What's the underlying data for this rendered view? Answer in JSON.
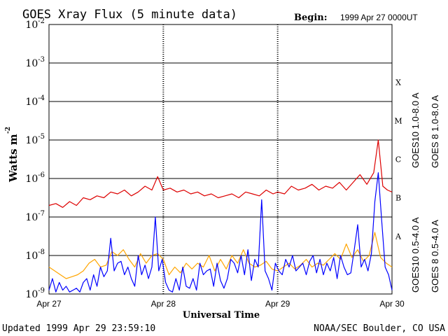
{
  "header": {
    "title": "GOES Xray Flux (5 minute data)",
    "begin_label": "Begin:",
    "begin_value": "1999 Apr 27 0000UT"
  },
  "footer": {
    "updated": "Updated 1999 Apr 29 23:59:10",
    "credit": "NOAA/SEC Boulder, CO USA"
  },
  "chart_data": {
    "type": "line",
    "title": "GOES Xray Flux (5 minute data)",
    "xlabel": "Universal Time",
    "ylabel": "Watts m-2",
    "ylabel_base": "Watts m",
    "ylabel_exp": "-2",
    "y_scale": "log",
    "xlim": [
      0,
      3
    ],
    "ylim": [
      1e-09,
      0.01
    ],
    "grid": true,
    "x_ticks": [
      {
        "x": 0,
        "label": "Apr 27"
      },
      {
        "x": 1,
        "label": "Apr 28"
      },
      {
        "x": 2,
        "label": "Apr 29"
      },
      {
        "x": 3,
        "label": "Apr 30"
      }
    ],
    "y_ticks": [
      {
        "exp": -2,
        "base": "10",
        "sup": "-2"
      },
      {
        "exp": -3,
        "base": "10",
        "sup": "-3"
      },
      {
        "exp": -4,
        "base": "10",
        "sup": "-4"
      },
      {
        "exp": -5,
        "base": "10",
        "sup": "-5"
      },
      {
        "exp": -6,
        "base": "10",
        "sup": "-6"
      },
      {
        "exp": -7,
        "base": "10",
        "sup": "-7"
      },
      {
        "exp": -8,
        "base": "10",
        "sup": "-8"
      },
      {
        "exp": -9,
        "base": "10",
        "sup": "-9"
      }
    ],
    "flare_classes": [
      {
        "label": "X",
        "at": -3.5
      },
      {
        "label": "M",
        "at": -4.5
      },
      {
        "label": "C",
        "at": -5.5
      },
      {
        "label": "B",
        "at": -6.5
      },
      {
        "label": "A",
        "at": -7.5
      }
    ],
    "legend": [
      {
        "label": "GOES10 1.0-8.0 A",
        "color": "#7a12a6"
      },
      {
        "label": "GOES 8 1.0-8.0 A",
        "color": "#dd0000"
      },
      {
        "label": "GOES10 0.5-4.0 A",
        "color": "#ffa500"
      },
      {
        "label": "GOES 8 0.5-4.0 A",
        "color": "#0000ff"
      }
    ],
    "series": [
      {
        "name": "GOES 8 1.0-8.0 A",
        "color": "#dd0000",
        "x": [
          0,
          0.06,
          0.12,
          0.18,
          0.24,
          0.3,
          0.36,
          0.42,
          0.48,
          0.54,
          0.6,
          0.66,
          0.72,
          0.78,
          0.84,
          0.9,
          0.95,
          1.0,
          1.06,
          1.12,
          1.18,
          1.24,
          1.3,
          1.36,
          1.42,
          1.48,
          1.54,
          1.6,
          1.66,
          1.72,
          1.78,
          1.84,
          1.9,
          1.96,
          2.0,
          2.06,
          2.12,
          2.18,
          2.24,
          2.3,
          2.36,
          2.42,
          2.48,
          2.54,
          2.6,
          2.66,
          2.72,
          2.78,
          2.84,
          2.88,
          2.92,
          2.96,
          3.0
        ],
        "y": [
          -6.7,
          -6.65,
          -6.75,
          -6.6,
          -6.7,
          -6.5,
          -6.55,
          -6.45,
          -6.5,
          -6.35,
          -6.4,
          -6.3,
          -6.45,
          -6.35,
          -6.2,
          -6.3,
          -5.95,
          -6.3,
          -6.25,
          -6.35,
          -6.3,
          -6.4,
          -6.35,
          -6.45,
          -6.4,
          -6.5,
          -6.45,
          -6.4,
          -6.5,
          -6.35,
          -6.4,
          -6.45,
          -6.3,
          -6.4,
          -6.35,
          -6.4,
          -6.2,
          -6.3,
          -6.25,
          -6.15,
          -6.3,
          -6.2,
          -6.25,
          -6.1,
          -6.3,
          -6.1,
          -5.9,
          -6.15,
          -5.85,
          -5.0,
          -6.2,
          -6.3,
          -6.35
        ]
      },
      {
        "name": "GOES10 0.5-4.0 A",
        "color": "#ffa500",
        "x": [
          0,
          0.05,
          0.1,
          0.15,
          0.2,
          0.25,
          0.3,
          0.35,
          0.4,
          0.45,
          0.5,
          0.55,
          0.6,
          0.65,
          0.7,
          0.75,
          0.8,
          0.85,
          0.9,
          0.95,
          1.0,
          1.05,
          1.1,
          1.15,
          1.2,
          1.25,
          1.3,
          1.35,
          1.4,
          1.45,
          1.5,
          1.55,
          1.6,
          1.65,
          1.7,
          1.75,
          1.8,
          1.85,
          1.9,
          1.95,
          2.0,
          2.05,
          2.1,
          2.15,
          2.2,
          2.25,
          2.3,
          2.35,
          2.4,
          2.45,
          2.5,
          2.55,
          2.6,
          2.65,
          2.7,
          2.75,
          2.8,
          2.85,
          2.9,
          2.95,
          3.0
        ],
        "y": [
          -8.3,
          -8.4,
          -8.5,
          -8.6,
          -8.55,
          -8.5,
          -8.4,
          -8.2,
          -8.1,
          -8.3,
          -8.25,
          -7.9,
          -8.0,
          -7.85,
          -8.1,
          -8.3,
          -7.95,
          -8.2,
          -8.0,
          -7.95,
          -8.1,
          -8.5,
          -8.3,
          -8.45,
          -8.2,
          -8.35,
          -8.2,
          -8.3,
          -8.0,
          -8.4,
          -8.1,
          -8.35,
          -8.0,
          -8.2,
          -7.85,
          -8.2,
          -8.3,
          -8.25,
          -8.15,
          -8.35,
          -8.4,
          -8.3,
          -8.2,
          -8.35,
          -8.25,
          -8.1,
          -8.3,
          -8.2,
          -8.25,
          -8.1,
          -7.95,
          -8.1,
          -7.7,
          -8.05,
          -7.85,
          -8.15,
          -8.0,
          -7.4,
          -8.05,
          -8.2,
          -8.3
        ]
      },
      {
        "name": "GOES 8 0.5-4.0 A",
        "color": "#0000ff",
        "x": [
          0,
          0.03,
          0.06,
          0.09,
          0.12,
          0.15,
          0.18,
          0.21,
          0.24,
          0.27,
          0.3,
          0.33,
          0.36,
          0.39,
          0.42,
          0.45,
          0.48,
          0.51,
          0.54,
          0.57,
          0.6,
          0.63,
          0.66,
          0.69,
          0.72,
          0.75,
          0.78,
          0.81,
          0.84,
          0.87,
          0.9,
          0.93,
          0.96,
          0.99,
          1.02,
          1.05,
          1.08,
          1.11,
          1.14,
          1.17,
          1.2,
          1.23,
          1.26,
          1.29,
          1.32,
          1.35,
          1.38,
          1.41,
          1.44,
          1.47,
          1.5,
          1.53,
          1.56,
          1.59,
          1.62,
          1.65,
          1.68,
          1.71,
          1.74,
          1.77,
          1.8,
          1.83,
          1.86,
          1.89,
          1.92,
          1.95,
          1.98,
          2.01,
          2.04,
          2.07,
          2.1,
          2.13,
          2.16,
          2.19,
          2.22,
          2.25,
          2.28,
          2.31,
          2.34,
          2.37,
          2.4,
          2.43,
          2.46,
          2.49,
          2.52,
          2.55,
          2.58,
          2.61,
          2.64,
          2.67,
          2.7,
          2.73,
          2.76,
          2.79,
          2.82,
          2.85,
          2.88,
          2.91,
          2.94,
          2.97,
          3.0
        ],
        "y": [
          -8.9,
          -8.6,
          -8.95,
          -8.7,
          -8.9,
          -8.8,
          -8.95,
          -8.9,
          -8.85,
          -8.95,
          -8.7,
          -8.6,
          -8.9,
          -8.5,
          -8.8,
          -8.3,
          -8.55,
          -8.4,
          -7.55,
          -8.4,
          -8.2,
          -8.15,
          -8.5,
          -8.3,
          -8.6,
          -8.8,
          -8.0,
          -8.5,
          -8.25,
          -8.6,
          -8.3,
          -7.0,
          -8.4,
          -8.1,
          -8.7,
          -8.9,
          -8.95,
          -8.6,
          -8.9,
          -8.3,
          -8.8,
          -8.85,
          -8.6,
          -8.9,
          -8.2,
          -8.5,
          -8.4,
          -8.35,
          -8.8,
          -8.2,
          -8.65,
          -8.85,
          -8.6,
          -8.1,
          -8.2,
          -8.45,
          -8.0,
          -8.5,
          -7.85,
          -8.65,
          -8.1,
          -8.3,
          -6.55,
          -8.4,
          -8.6,
          -8.9,
          -8.2,
          -8.4,
          -8.5,
          -8.1,
          -8.3,
          -8.0,
          -8.4,
          -8.3,
          -8.2,
          -8.5,
          -8.15,
          -8.0,
          -8.45,
          -8.1,
          -8.5,
          -8.2,
          -8.4,
          -8.05,
          -8.6,
          -8.0,
          -8.3,
          -8.5,
          -8.45,
          -7.85,
          -7.2,
          -8.3,
          -8.1,
          -8.4,
          -7.95,
          -6.6,
          -5.85,
          -7.1,
          -8.3,
          -8.5,
          -8.9
        ]
      }
    ]
  }
}
